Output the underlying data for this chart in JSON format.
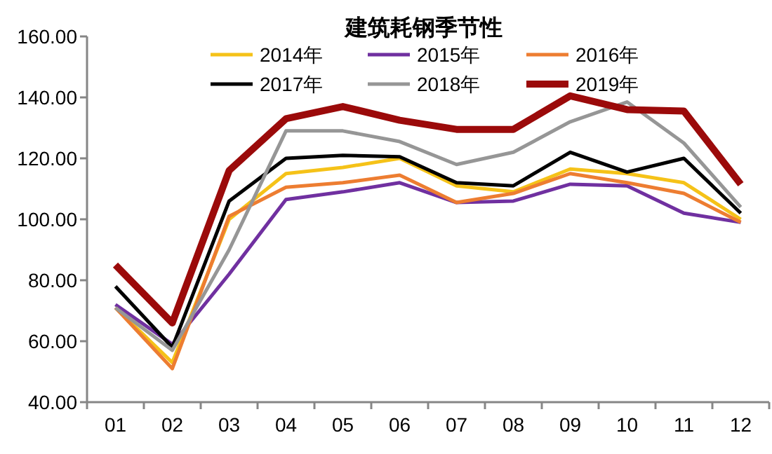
{
  "chart_data": {
    "type": "line",
    "title": "建筑耗钢季节性",
    "categories": [
      "01",
      "02",
      "03",
      "04",
      "05",
      "06",
      "07",
      "08",
      "09",
      "10",
      "11",
      "12"
    ],
    "ylim": [
      40,
      160
    ],
    "yticks": [
      {
        "value": 40,
        "label": "40.00"
      },
      {
        "value": 60,
        "label": "60.00"
      },
      {
        "value": 80,
        "label": "80.00"
      },
      {
        "value": 100,
        "label": "100.00"
      },
      {
        "value": 120,
        "label": "120.00"
      },
      {
        "value": 140,
        "label": "140.00"
      },
      {
        "value": 160,
        "label": "160.00"
      }
    ],
    "legend": "top",
    "grid": false,
    "marker": "none",
    "line_style": "solid",
    "series": [
      {
        "name": "2014年",
        "color": "#f5c218",
        "values": [
          71,
          53,
          100,
          115,
          117,
          120,
          111,
          109,
          116.5,
          115,
          112,
          100
        ]
      },
      {
        "name": "2015年",
        "color": "#7030a0",
        "values": [
          72,
          59,
          82,
          106.5,
          109,
          112,
          105.5,
          106,
          111.5,
          111,
          102,
          99
        ]
      },
      {
        "name": "2016年",
        "color": "#ed7d31",
        "values": [
          71,
          51,
          101,
          110.5,
          112,
          114.5,
          105.5,
          108.5,
          115,
          112,
          108.5,
          99
        ]
      },
      {
        "name": "2017年",
        "color": "#000000",
        "values": [
          78,
          58,
          106,
          120,
          121,
          120.5,
          112,
          111,
          122,
          115.5,
          120,
          102
        ]
      },
      {
        "name": "2018年",
        "color": "#969696",
        "values": [
          71,
          57,
          90,
          129,
          129,
          125.5,
          118,
          122,
          132,
          138.5,
          125,
          104
        ]
      },
      {
        "name": "2019年",
        "color": "#9b0a0a",
        "values": [
          85,
          66,
          116,
          133,
          137,
          132.5,
          129.5,
          129.5,
          140.5,
          136,
          135.5,
          111.5
        ]
      }
    ]
  }
}
